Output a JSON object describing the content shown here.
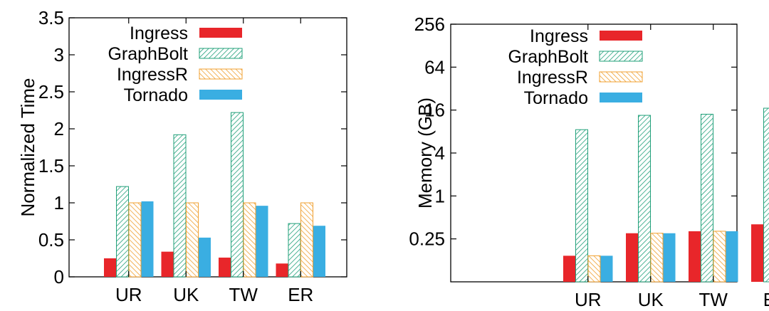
{
  "colors": {
    "Ingress": "#e8262a",
    "GraphBolt": "#21a07a",
    "IngressR": "#f0a030",
    "Tornado": "#3aaee2"
  },
  "chart_data": [
    {
      "type": "bar",
      "scale": "linear",
      "title": "",
      "xlabel": "",
      "ylabel": "Normalized Time",
      "ylim": [
        0,
        3.5
      ],
      "yticks": [
        0,
        0.5,
        1,
        1.5,
        2,
        2.5,
        3,
        3.5
      ],
      "ytick_labels": [
        "0",
        "0.5",
        "1",
        "1.5",
        "2",
        "2.5",
        "3",
        "3.5"
      ],
      "categories": [
        "UR",
        "UK",
        "TW",
        "ER"
      ],
      "legend_position": "top-left",
      "series": [
        {
          "name": "Ingress",
          "pattern": "solid",
          "values": [
            0.25,
            0.34,
            0.26,
            0.18
          ]
        },
        {
          "name": "GraphBolt",
          "pattern": "hatch-right",
          "values": [
            1.22,
            1.92,
            2.22,
            0.72
          ]
        },
        {
          "name": "IngressR",
          "pattern": "hatch-left",
          "values": [
            1.0,
            1.0,
            1.0,
            1.0
          ]
        },
        {
          "name": "Tornado",
          "pattern": "solid",
          "values": [
            1.02,
            0.53,
            0.96,
            0.69
          ]
        }
      ]
    },
    {
      "type": "bar",
      "scale": "log2",
      "title": "",
      "xlabel": "",
      "ylabel": "Memory (GB)",
      "ylim": [
        0.0625,
        256
      ],
      "yticks": [
        0.25,
        1,
        4,
        16,
        64,
        256
      ],
      "ytick_labels": [
        "0.25",
        "1",
        "4",
        "16",
        "64",
        "256"
      ],
      "categories": [
        "UR",
        "UK",
        "TW",
        "ER"
      ],
      "legend_position": "top-left",
      "series": [
        {
          "name": "Ingress",
          "pattern": "solid",
          "values": [
            0.145,
            0.3,
            0.32,
            0.4
          ]
        },
        {
          "name": "GraphBolt",
          "pattern": "hatch-right",
          "values": [
            8.5,
            13.5,
            14.0,
            17.0
          ]
        },
        {
          "name": "IngressR",
          "pattern": "hatch-left",
          "values": [
            0.145,
            0.3,
            0.32,
            0.4
          ]
        },
        {
          "name": "Tornado",
          "pattern": "solid",
          "values": [
            0.145,
            0.3,
            0.32,
            0.4
          ]
        }
      ]
    }
  ]
}
